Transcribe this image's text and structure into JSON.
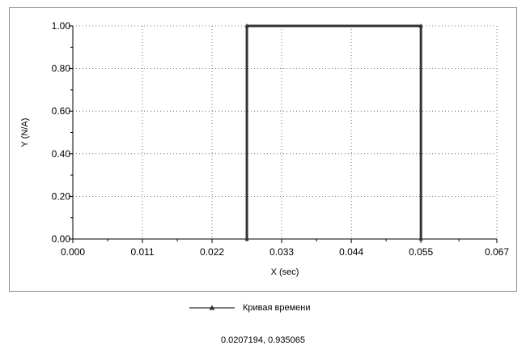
{
  "chart_data": {
    "type": "line",
    "xlabel": "X (sec)",
    "ylabel": "Y (N/A)",
    "xlim": [
      0.0,
      0.067
    ],
    "ylim": [
      0.0,
      1.0
    ],
    "x_ticks": [
      "0.000",
      "0.011",
      "0.022",
      "0.033",
      "0.044",
      "0.055",
      "0.067"
    ],
    "x_tick_values": [
      0.0,
      0.011,
      0.022,
      0.033,
      0.044,
      0.055,
      0.067
    ],
    "y_ticks": [
      "0.00",
      "0.20",
      "0.40",
      "0.60",
      "0.80",
      "1.00"
    ],
    "y_tick_values": [
      0.0,
      0.2,
      0.4,
      0.6,
      0.8,
      1.0
    ],
    "grid": true,
    "legend_position": "bottom-center",
    "series": [
      {
        "name": "Кривая времени",
        "marker": "triangle",
        "color": "#333333",
        "x": [
          0.0275,
          0.0275,
          0.055,
          0.055
        ],
        "y": [
          0.0,
          1.0,
          1.0,
          0.0
        ]
      }
    ]
  },
  "coordinate_readout": "0.0207194, 0.935065"
}
